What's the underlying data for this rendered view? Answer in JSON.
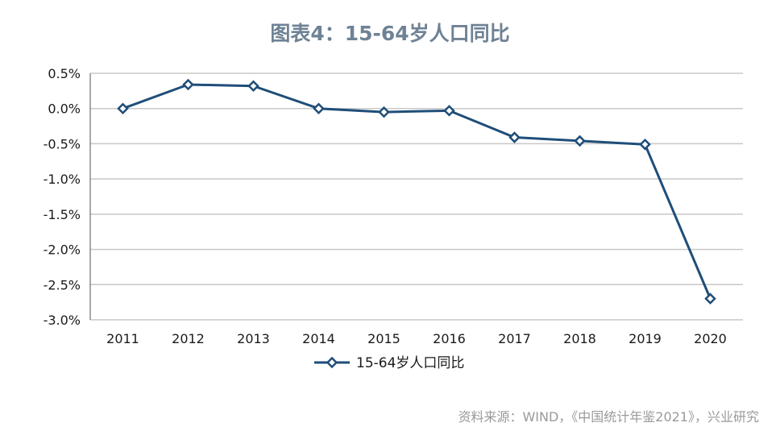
{
  "chart_data": {
    "type": "line",
    "title": "图表4：15-64岁人口同比",
    "categories": [
      "2011",
      "2012",
      "2013",
      "2014",
      "2015",
      "2016",
      "2017",
      "2018",
      "2019",
      "2020"
    ],
    "series": [
      {
        "name": "15-64岁人口同比",
        "values": [
          0.0,
          0.34,
          0.32,
          0.0,
          -0.05,
          -0.03,
          -0.41,
          -0.46,
          -0.51,
          -2.7
        ]
      }
    ],
    "ylim": [
      -3.0,
      0.5
    ],
    "yticks": [
      0.5,
      0.0,
      -0.5,
      -1.0,
      -1.5,
      -2.0,
      -2.5,
      -3.0
    ],
    "ytick_labels": [
      "0.5%",
      "0.0%",
      "-0.5%",
      "-1.0%",
      "-1.5%",
      "-2.0%",
      "-2.5%",
      "-3.0%"
    ],
    "xlabel": "",
    "ylabel": "",
    "grid": true,
    "legend_position": "bottom",
    "colors": {
      "line": "#1f4e79",
      "grid": "#c8c8c8",
      "title": "#6f8295"
    }
  },
  "source_note": "资料来源：WIND，《中国统计年鉴2021》，兴业研究"
}
